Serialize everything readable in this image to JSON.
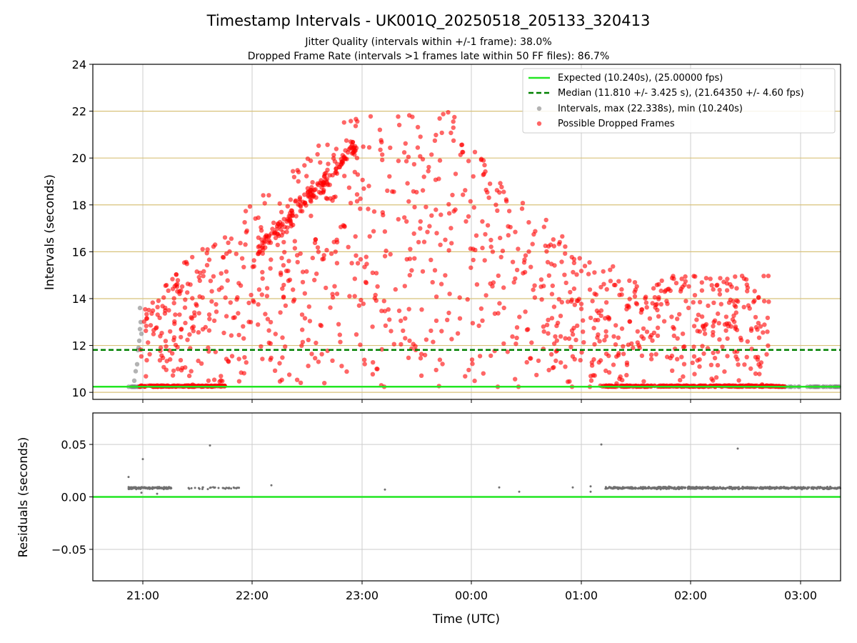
{
  "chart_data": {
    "type": "scatter",
    "title": "Timestamp Intervals - UK001Q_20250518_205133_320413",
    "subtitle_lines": [
      "Jitter Quality (intervals within +/-1 frame): 38.0%",
      "Dropped Frame Rate (intervals >1 frames late within 50 FF files): 86.7%"
    ],
    "x_ticks": [
      "21:00",
      "22:00",
      "23:00",
      "00:00",
      "01:00",
      "02:00",
      "03:00"
    ],
    "xlabel": "Time (UTC)",
    "top_panel": {
      "ylabel": "Intervals (seconds)",
      "ylim": [
        9.7,
        24
      ],
      "y_ticks": [
        10,
        12,
        14,
        16,
        18,
        20,
        22
      ],
      "gold_gridlines": [
        10,
        12,
        14,
        16,
        18,
        20,
        22
      ],
      "expected_interval": 10.24,
      "median_interval": 11.81,
      "legend": [
        "Expected (10.240s), (25.00000 fps)",
        "Median (11.810 +/- 3.425 s), (21.64350 +/- 4.60 fps)",
        "Intervals, max (22.338s), min (10.240s)",
        "Possible Dropped Frames"
      ],
      "legend_placement": "top-right",
      "series_colors": {
        "expected": "#22e622",
        "median": "#008000",
        "intervals": "#808080",
        "dropped": "#ff0000"
      }
    },
    "bottom_panel": {
      "ylabel": "Residuals (seconds)",
      "ylim": [
        -0.08,
        0.08
      ],
      "y_ticks": [
        "0.05",
        "0.00",
        "−0.05"
      ],
      "y_tick_values": [
        0.05,
        0.0,
        -0.05
      ],
      "zero_line_color": "#22e622",
      "point_color": "#707070"
    }
  }
}
